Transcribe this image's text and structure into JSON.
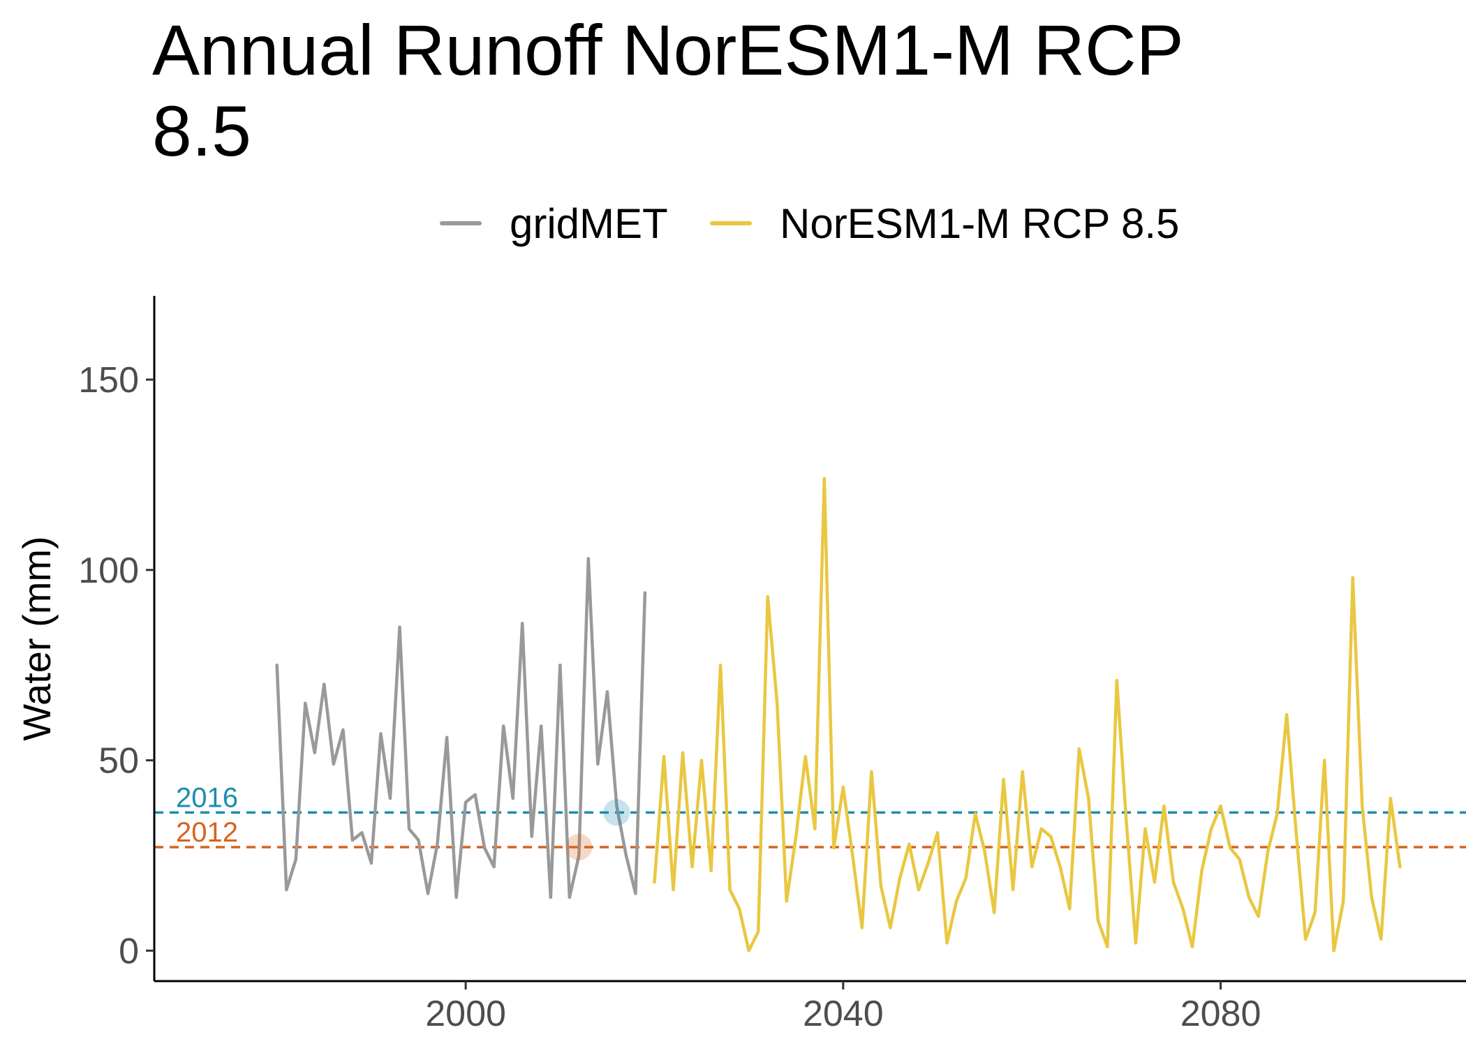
{
  "title": "Annual Runoff NorESM1-M RCP 8.5",
  "chart_data": {
    "type": "line",
    "title": "Annual Runoff NorESM1-M RCP 8.5",
    "xlabel": "",
    "ylabel": "Water (mm)",
    "xlim": [
      1967,
      2106
    ],
    "ylim": [
      -8,
      172
    ],
    "x_ticks": [
      2000,
      2040,
      2080
    ],
    "y_ticks": [
      0,
      50,
      100,
      150
    ],
    "grid": false,
    "legend_position": "top",
    "series": [
      {
        "name": "gridMET",
        "color": "#999999",
        "x": [
          1980,
          1981,
          1982,
          1983,
          1984,
          1985,
          1986,
          1987,
          1988,
          1989,
          1990,
          1991,
          1992,
          1993,
          1994,
          1995,
          1996,
          1997,
          1998,
          1999,
          2000,
          2001,
          2002,
          2003,
          2004,
          2005,
          2006,
          2007,
          2008,
          2009,
          2010,
          2011,
          2012,
          2013,
          2014,
          2015,
          2016,
          2017,
          2018,
          2019
        ],
        "y": [
          75,
          16,
          24,
          65,
          52,
          70,
          49,
          58,
          29,
          31,
          23,
          57,
          40,
          85,
          32,
          29,
          15,
          28,
          56,
          14,
          39,
          41,
          27,
          22,
          59,
          40,
          86,
          30,
          59,
          14,
          75,
          14,
          25,
          103,
          49,
          68,
          38,
          25,
          15,
          94
        ]
      },
      {
        "name": "NorESM1-M RCP 8.5",
        "color": "#E9C741",
        "x": [
          2020,
          2021,
          2022,
          2023,
          2024,
          2025,
          2026,
          2027,
          2028,
          2029,
          2030,
          2031,
          2032,
          2033,
          2034,
          2035,
          2036,
          2037,
          2038,
          2039,
          2040,
          2041,
          2042,
          2043,
          2044,
          2045,
          2046,
          2047,
          2048,
          2049,
          2050,
          2051,
          2052,
          2053,
          2054,
          2055,
          2056,
          2057,
          2058,
          2059,
          2060,
          2061,
          2062,
          2063,
          2064,
          2065,
          2066,
          2067,
          2068,
          2069,
          2070,
          2071,
          2072,
          2073,
          2074,
          2075,
          2076,
          2077,
          2078,
          2079,
          2080,
          2081,
          2082,
          2083,
          2084,
          2085,
          2086,
          2087,
          2088,
          2089,
          2090,
          2091,
          2092,
          2093,
          2094,
          2095,
          2096,
          2097,
          2098,
          2099
        ],
        "y": [
          18,
          51,
          16,
          52,
          22,
          50,
          21,
          75,
          16,
          11,
          0,
          5,
          93,
          65,
          13,
          30,
          51,
          32,
          124,
          27,
          43,
          25,
          6,
          47,
          17,
          6,
          19,
          28,
          16,
          23,
          31,
          2,
          13,
          19,
          36,
          26,
          10,
          45,
          16,
          47,
          22,
          32,
          30,
          22,
          11,
          53,
          40,
          8,
          1,
          71,
          34,
          2,
          32,
          18,
          38,
          18,
          11,
          1,
          21,
          32,
          38,
          27,
          24,
          14,
          9,
          26,
          36,
          62,
          31,
          3,
          10,
          50,
          0,
          13,
          98,
          38,
          14,
          3,
          40,
          22
        ]
      }
    ],
    "reference_lines": [
      {
        "label": "2016",
        "value": 36.3,
        "color": "#1A8CAF",
        "marker_x": 2016
      },
      {
        "label": "2012",
        "value": 27.2,
        "color": "#D8621B",
        "marker_x": 2012
      }
    ]
  }
}
